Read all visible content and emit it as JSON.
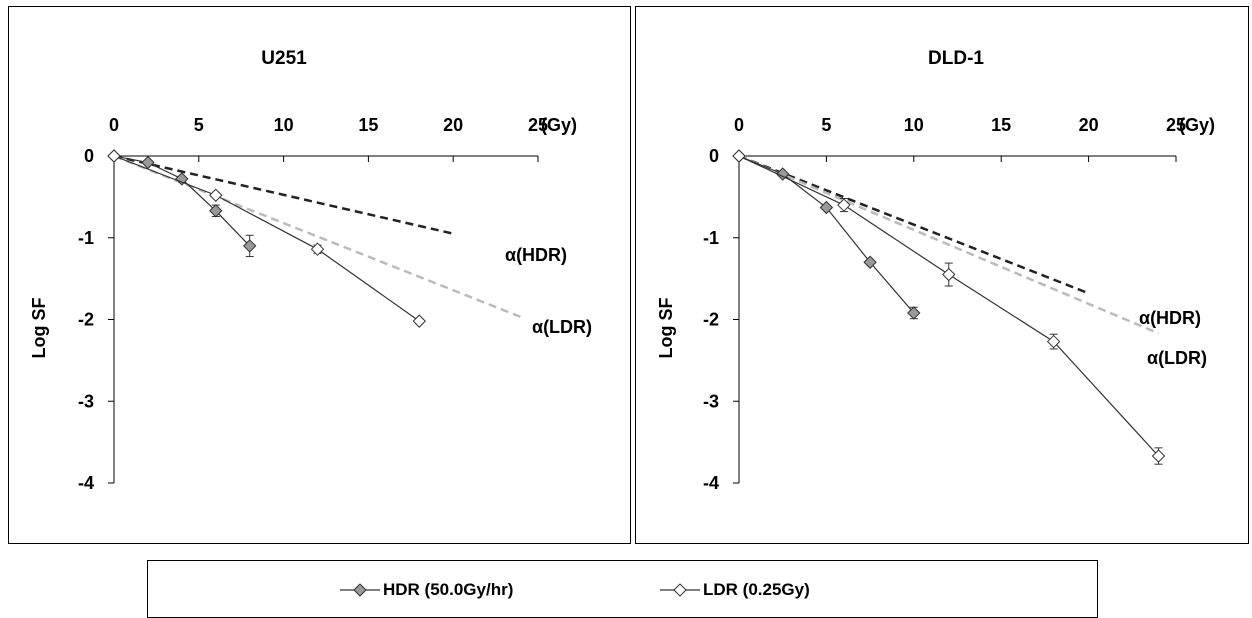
{
  "chart_data": [
    {
      "type": "line",
      "title": "U251",
      "xlabel": "(Gy)",
      "ylabel": "Log SF",
      "xlim": [
        0,
        25
      ],
      "ylim": [
        -4,
        0
      ],
      "x_axis_position": "top",
      "x_ticks": [
        "0",
        "5",
        "10",
        "15",
        "20",
        "25"
      ],
      "y_ticks": [
        "0",
        "-1",
        "-2",
        "-3",
        "-4"
      ],
      "series": [
        {
          "name": "HDR (50.0Gy/hr)",
          "marker": "diamond",
          "color": "#999999",
          "x": [
            0,
            2,
            4,
            6,
            8
          ],
          "y": [
            0,
            -0.08,
            -0.28,
            -0.67,
            -1.1
          ],
          "err": [
            0,
            0,
            0,
            0.07,
            0.13
          ]
        },
        {
          "name": "LDR (0.25Gy)",
          "marker": "diamond",
          "color": "#ffffff",
          "x": [
            0,
            6,
            12,
            18
          ],
          "y": [
            0,
            -0.48,
            -1.14,
            -2.02
          ],
          "err": [
            0,
            0,
            0.05,
            0.03
          ]
        }
      ],
      "alpha_lines": [
        {
          "label": "α(HDR)",
          "color": "#222222",
          "x": [
            0,
            20
          ],
          "y": [
            0,
            -0.95
          ]
        },
        {
          "label": "α(LDR)",
          "color": "#bbbbbb",
          "x": [
            0,
            24
          ],
          "y": [
            0,
            -1.97
          ]
        }
      ]
    },
    {
      "type": "line",
      "title": "DLD-1",
      "xlabel": "(Gy)",
      "ylabel": "Log SF",
      "xlim": [
        0,
        25
      ],
      "ylim": [
        -4,
        0
      ],
      "x_axis_position": "top",
      "x_ticks": [
        "0",
        "5",
        "10",
        "15",
        "20",
        "25"
      ],
      "y_ticks": [
        "0",
        "-1",
        "-2",
        "-3",
        "-4"
      ],
      "series": [
        {
          "name": "HDR (50.0Gy/hr)",
          "marker": "diamond",
          "color": "#999999",
          "x": [
            0,
            2.5,
            5,
            7.5,
            10
          ],
          "y": [
            0,
            -0.22,
            -0.63,
            -1.3,
            -1.92
          ],
          "err": [
            0,
            0,
            0,
            0,
            0.07
          ]
        },
        {
          "name": "LDR (0.25Gy)",
          "marker": "diamond",
          "color": "#ffffff",
          "x": [
            0,
            6,
            12,
            18,
            24
          ],
          "y": [
            0,
            -0.6,
            -1.45,
            -2.27,
            -3.67
          ],
          "err": [
            0,
            0.08,
            0.14,
            0.09,
            0.1
          ]
        }
      ],
      "alpha_lines": [
        {
          "label": "α(HDR)",
          "color": "#222222",
          "x": [
            0,
            20
          ],
          "y": [
            0,
            -1.68
          ]
        },
        {
          "label": "α(LDR)",
          "color": "#bbbbbb",
          "x": [
            0,
            24
          ],
          "y": [
            0,
            -2.17
          ]
        }
      ]
    }
  ],
  "legend": {
    "items": [
      {
        "label": "HDR (50.0Gy/hr)",
        "marker_color": "#999999"
      },
      {
        "label": "LDR (0.25Gy)",
        "marker_color": "#ffffff"
      }
    ]
  }
}
